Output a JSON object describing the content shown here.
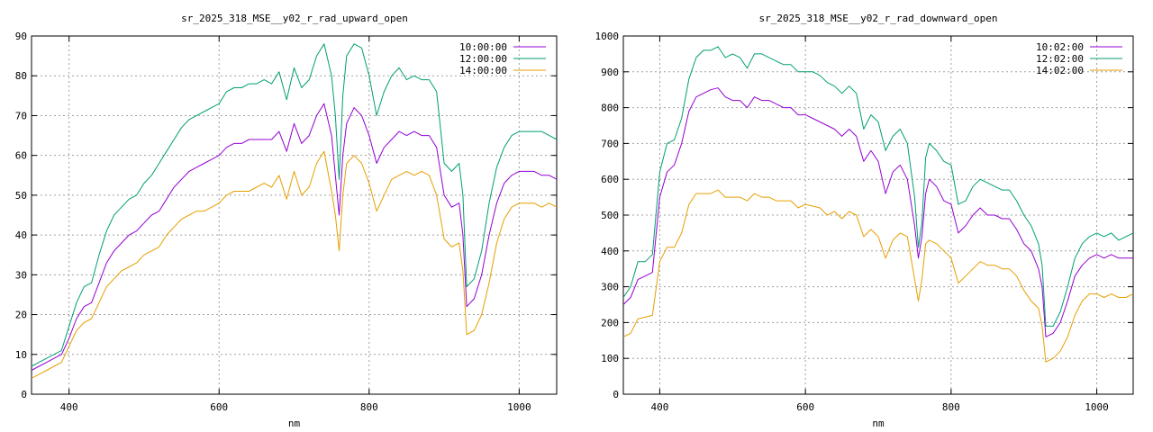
{
  "chart_data": [
    {
      "type": "line",
      "title": "sr_2025_318_MSE__y02_r_rad_upward_open",
      "xlabel": "nm",
      "ylabel": "",
      "xlim": [
        350,
        1050
      ],
      "ylim": [
        0,
        90
      ],
      "xticks": [
        400,
        600,
        800,
        1000
      ],
      "yticks": [
        0,
        10,
        20,
        30,
        40,
        50,
        60,
        70,
        80,
        90
      ],
      "grid": true,
      "legend_position": "top-right",
      "series": [
        {
          "name": "10:00:00",
          "color": "#9400d3",
          "x": [
            350,
            360,
            370,
            380,
            390,
            400,
            410,
            420,
            430,
            440,
            450,
            460,
            470,
            480,
            490,
            500,
            510,
            520,
            530,
            540,
            550,
            560,
            570,
            580,
            590,
            600,
            610,
            620,
            630,
            640,
            650,
            660,
            670,
            680,
            690,
            700,
            710,
            720,
            730,
            740,
            750,
            755,
            760,
            765,
            770,
            780,
            790,
            800,
            810,
            820,
            830,
            840,
            850,
            860,
            870,
            880,
            890,
            900,
            910,
            920,
            925,
            930,
            940,
            950,
            960,
            970,
            980,
            990,
            1000,
            1010,
            1020,
            1030,
            1040,
            1050
          ],
          "y": [
            6,
            7,
            8,
            9,
            10,
            14,
            19,
            22,
            23,
            28,
            33,
            36,
            38,
            40,
            41,
            43,
            45,
            46,
            49,
            52,
            54,
            56,
            57,
            58,
            59,
            60,
            62,
            63,
            63,
            64,
            64,
            64,
            64,
            66,
            61,
            68,
            63,
            65,
            70,
            73,
            65,
            55,
            45,
            60,
            68,
            72,
            70,
            65,
            58,
            62,
            64,
            66,
            65,
            66,
            65,
            65,
            62,
            50,
            47,
            48,
            40,
            22,
            24,
            30,
            40,
            48,
            53,
            55,
            56,
            56,
            56,
            55,
            55,
            54
          ]
        },
        {
          "name": "12:00:00",
          "color": "#009e73",
          "x": [
            350,
            360,
            370,
            380,
            390,
            400,
            410,
            420,
            430,
            440,
            450,
            460,
            470,
            480,
            490,
            500,
            510,
            520,
            530,
            540,
            550,
            560,
            570,
            580,
            590,
            600,
            610,
            620,
            630,
            640,
            650,
            660,
            670,
            680,
            690,
            700,
            710,
            720,
            730,
            740,
            750,
            755,
            760,
            765,
            770,
            780,
            790,
            800,
            810,
            820,
            830,
            840,
            850,
            860,
            870,
            880,
            890,
            900,
            910,
            920,
            925,
            930,
            940,
            950,
            960,
            970,
            980,
            990,
            1000,
            1010,
            1020,
            1030,
            1040,
            1050
          ],
          "y": [
            7,
            8,
            9,
            10,
            11,
            17,
            23,
            27,
            28,
            35,
            41,
            45,
            47,
            49,
            50,
            53,
            55,
            58,
            61,
            64,
            67,
            69,
            70,
            71,
            72,
            73,
            76,
            77,
            77,
            78,
            78,
            79,
            78,
            81,
            74,
            82,
            77,
            79,
            85,
            88,
            80,
            70,
            54,
            75,
            85,
            88,
            87,
            80,
            70,
            76,
            80,
            82,
            79,
            80,
            79,
            79,
            76,
            58,
            56,
            58,
            50,
            27,
            29,
            36,
            48,
            57,
            62,
            65,
            66,
            66,
            66,
            66,
            65,
            64
          ]
        },
        {
          "name": "14:00:00",
          "color": "#e69f00",
          "x": [
            350,
            360,
            370,
            380,
            390,
            400,
            410,
            420,
            430,
            440,
            450,
            460,
            470,
            480,
            490,
            500,
            510,
            520,
            530,
            540,
            550,
            560,
            570,
            580,
            590,
            600,
            610,
            620,
            630,
            640,
            650,
            660,
            670,
            680,
            690,
            700,
            710,
            720,
            730,
            740,
            750,
            755,
            760,
            765,
            770,
            780,
            790,
            800,
            810,
            820,
            830,
            840,
            850,
            860,
            870,
            880,
            890,
            900,
            910,
            920,
            925,
            930,
            940,
            950,
            960,
            970,
            980,
            990,
            1000,
            1010,
            1020,
            1030,
            1040,
            1050
          ],
          "y": [
            4,
            5,
            6,
            7,
            8,
            12,
            16,
            18,
            19,
            23,
            27,
            29,
            31,
            32,
            33,
            35,
            36,
            37,
            40,
            42,
            44,
            45,
            46,
            46,
            47,
            48,
            50,
            51,
            51,
            51,
            52,
            53,
            52,
            55,
            49,
            56,
            50,
            52,
            58,
            61,
            51,
            45,
            36,
            50,
            58,
            60,
            58,
            53,
            46,
            50,
            54,
            55,
            56,
            55,
            56,
            55,
            50,
            39,
            37,
            38,
            31,
            15,
            16,
            20,
            28,
            38,
            44,
            47,
            48,
            48,
            48,
            47,
            48,
            47
          ]
        }
      ]
    },
    {
      "type": "line",
      "title": "sr_2025_318_MSE__y02_r_rad_downward_open",
      "xlabel": "nm",
      "ylabel": "",
      "xlim": [
        350,
        1050
      ],
      "ylim": [
        0,
        1000
      ],
      "xticks": [
        400,
        600,
        800,
        1000
      ],
      "yticks": [
        0,
        100,
        200,
        300,
        400,
        500,
        600,
        700,
        800,
        900,
        1000
      ],
      "grid": true,
      "legend_position": "top-right",
      "series": [
        {
          "name": "10:02:00",
          "color": "#9400d3",
          "x": [
            350,
            360,
            370,
            380,
            390,
            400,
            410,
            420,
            430,
            440,
            450,
            460,
            470,
            480,
            490,
            500,
            510,
            520,
            530,
            540,
            550,
            560,
            570,
            580,
            590,
            600,
            610,
            620,
            630,
            640,
            650,
            660,
            670,
            680,
            690,
            700,
            710,
            720,
            730,
            740,
            750,
            755,
            760,
            765,
            770,
            780,
            790,
            800,
            810,
            820,
            830,
            840,
            850,
            860,
            870,
            880,
            890,
            900,
            910,
            920,
            925,
            930,
            940,
            950,
            960,
            970,
            980,
            990,
            1000,
            1010,
            1020,
            1030,
            1040,
            1050
          ],
          "y": [
            250,
            270,
            320,
            330,
            340,
            550,
            620,
            640,
            700,
            790,
            830,
            840,
            850,
            855,
            830,
            820,
            820,
            800,
            830,
            820,
            820,
            810,
            800,
            800,
            780,
            780,
            770,
            760,
            750,
            740,
            720,
            740,
            720,
            650,
            680,
            650,
            560,
            620,
            640,
            600,
            470,
            380,
            440,
            560,
            600,
            580,
            540,
            530,
            450,
            470,
            500,
            520,
            500,
            500,
            490,
            490,
            460,
            420,
            400,
            350,
            300,
            160,
            170,
            200,
            260,
            330,
            360,
            380,
            390,
            380,
            390,
            380,
            380,
            380
          ]
        },
        {
          "name": "12:02:00",
          "color": "#009e73",
          "x": [
            350,
            360,
            370,
            380,
            390,
            400,
            410,
            420,
            430,
            440,
            450,
            460,
            470,
            480,
            490,
            500,
            510,
            520,
            530,
            540,
            550,
            560,
            570,
            580,
            590,
            600,
            610,
            620,
            630,
            640,
            650,
            660,
            670,
            680,
            690,
            700,
            710,
            720,
            730,
            740,
            750,
            755,
            760,
            765,
            770,
            780,
            790,
            800,
            810,
            820,
            830,
            840,
            850,
            860,
            870,
            880,
            890,
            900,
            910,
            920,
            925,
            930,
            940,
            950,
            960,
            970,
            980,
            990,
            1000,
            1010,
            1020,
            1030,
            1040,
            1050
          ],
          "y": [
            270,
            300,
            370,
            370,
            390,
            620,
            700,
            710,
            770,
            880,
            940,
            960,
            960,
            970,
            940,
            950,
            940,
            910,
            950,
            950,
            940,
            930,
            920,
            920,
            900,
            900,
            900,
            890,
            870,
            860,
            840,
            860,
            840,
            740,
            780,
            760,
            680,
            720,
            740,
            700,
            550,
            410,
            480,
            660,
            700,
            680,
            650,
            640,
            530,
            540,
            580,
            600,
            590,
            580,
            570,
            570,
            540,
            500,
            470,
            420,
            360,
            190,
            190,
            230,
            300,
            380,
            420,
            440,
            450,
            440,
            450,
            430,
            440,
            450
          ]
        },
        {
          "name": "14:02:00",
          "color": "#e69f00",
          "x": [
            350,
            360,
            370,
            380,
            390,
            400,
            410,
            420,
            430,
            440,
            450,
            460,
            470,
            480,
            490,
            500,
            510,
            520,
            530,
            540,
            550,
            560,
            570,
            580,
            590,
            600,
            610,
            620,
            630,
            640,
            650,
            660,
            670,
            680,
            690,
            700,
            710,
            720,
            730,
            740,
            750,
            755,
            760,
            765,
            770,
            780,
            790,
            800,
            810,
            820,
            830,
            840,
            850,
            860,
            870,
            880,
            890,
            900,
            910,
            920,
            925,
            930,
            940,
            950,
            960,
            970,
            980,
            990,
            1000,
            1010,
            1020,
            1030,
            1040,
            1050
          ],
          "y": [
            160,
            170,
            210,
            215,
            220,
            370,
            410,
            410,
            450,
            530,
            560,
            560,
            560,
            570,
            550,
            550,
            550,
            540,
            560,
            550,
            550,
            540,
            540,
            540,
            520,
            530,
            525,
            520,
            500,
            510,
            490,
            510,
            500,
            440,
            460,
            440,
            380,
            430,
            450,
            440,
            320,
            260,
            320,
            420,
            430,
            420,
            400,
            380,
            310,
            330,
            350,
            370,
            360,
            360,
            350,
            350,
            330,
            290,
            260,
            240,
            190,
            90,
            100,
            120,
            160,
            220,
            260,
            280,
            280,
            270,
            280,
            270,
            270,
            280
          ]
        }
      ]
    }
  ]
}
